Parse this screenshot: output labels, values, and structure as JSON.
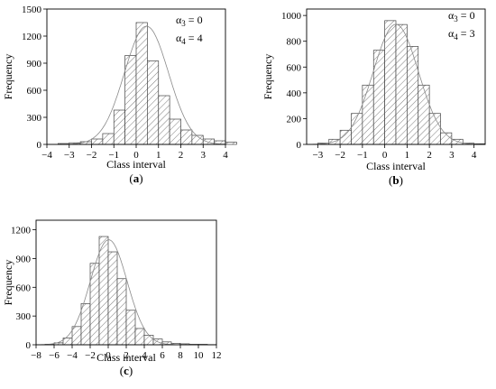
{
  "chart_data": [
    {
      "type": "bar",
      "panel_label": "a",
      "xlabel": "Class interval",
      "ylabel": "Frequency",
      "xlim": [
        -4,
        4
      ],
      "ylim": [
        0,
        1500
      ],
      "xticks": [
        -4,
        -3,
        -2,
        -1,
        0,
        1,
        2,
        3,
        4
      ],
      "yticks": [
        0,
        300,
        600,
        900,
        1200,
        1500
      ],
      "annotations": [
        {
          "sym": "α",
          "sub": "3",
          "rest": " = 0"
        },
        {
          "sym": "α",
          "sub": "4",
          "rest": " = 4"
        }
      ],
      "bins": [
        -3.5,
        -3.0,
        -2.5,
        -2.0,
        -1.5,
        -1.0,
        -0.5,
        0.0,
        0.5,
        1.0,
        1.5,
        2.0,
        2.5,
        3.0,
        3.5,
        4.0
      ],
      "values": [
        10,
        18,
        30,
        60,
        120,
        380,
        985,
        1350,
        925,
        540,
        280,
        160,
        100,
        60,
        40,
        25
      ],
      "curve": "fitted density",
      "bar_pattern": "diagonal hatch"
    },
    {
      "type": "bar",
      "panel_label": "b",
      "xlabel": "Class interval",
      "ylabel": "Frequency",
      "xlim": [
        -3.5,
        4.5
      ],
      "ylim": [
        0,
        1050
      ],
      "xticks": [
        -3,
        -2,
        -1,
        0,
        1,
        2,
        3,
        4
      ],
      "yticks": [
        0,
        200,
        400,
        600,
        800,
        1000
      ],
      "annotations": [
        {
          "sym": "α",
          "sub": "3",
          "rest": " = 0"
        },
        {
          "sym": "α",
          "sub": "4",
          "rest": " = 3"
        }
      ],
      "bins": [
        -3.0,
        -2.5,
        -2.0,
        -1.5,
        -1.0,
        -0.5,
        0.0,
        0.5,
        1.0,
        1.5,
        2.0,
        2.5,
        3.0,
        3.5,
        4.0
      ],
      "values": [
        10,
        40,
        110,
        240,
        460,
        730,
        960,
        930,
        760,
        460,
        240,
        90,
        40,
        10,
        5
      ],
      "curve": "fitted density",
      "bar_pattern": "diagonal hatch"
    },
    {
      "type": "bar",
      "panel_label": "c",
      "xlabel": "Class interval",
      "ylabel": "Frequency",
      "xlim": [
        -8,
        12
      ],
      "ylim": [
        0,
        1300
      ],
      "xticks": [
        -8,
        -6,
        -4,
        -2,
        0,
        2,
        4,
        6,
        8,
        10,
        12
      ],
      "yticks": [
        0,
        300,
        600,
        900,
        1200
      ],
      "annotations": [],
      "bins": [
        -7,
        -6,
        -5,
        -4,
        -3,
        -2,
        -1,
        0,
        1,
        2,
        3,
        4,
        5,
        6,
        7,
        8,
        9,
        10,
        11
      ],
      "values": [
        5,
        20,
        70,
        190,
        430,
        850,
        1130,
        970,
        690,
        360,
        170,
        100,
        60,
        30,
        15,
        10,
        5,
        5,
        2
      ],
      "curve": "fitted density",
      "bar_pattern": "diagonal hatch"
    }
  ]
}
